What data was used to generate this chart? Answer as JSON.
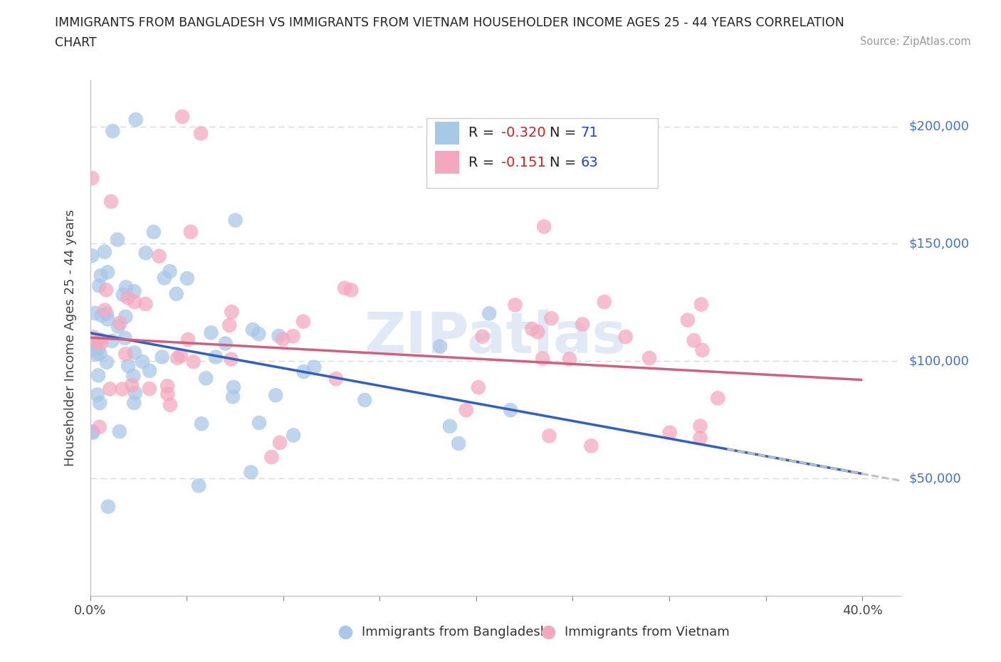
{
  "title_line1": "IMMIGRANTS FROM BANGLADESH VS IMMIGRANTS FROM VIETNAM HOUSEHOLDER INCOME AGES 25 - 44 YEARS CORRELATION",
  "title_line2": "CHART",
  "source": "Source: ZipAtlas.com",
  "ylabel": "Householder Income Ages 25 - 44 years",
  "xlim": [
    0.0,
    0.4
  ],
  "ylim": [
    0,
    220000
  ],
  "bangladesh_color": "#a8c8e8",
  "vietnam_color": "#f4a8c0",
  "bangladesh_line_color": "#3060c0",
  "vietnam_line_color": "#d06080",
  "dash_line_color": "#c0c0c0",
  "bangladesh_R": "-0.320",
  "bangladesh_N": "71",
  "vietnam_R": "-0.151",
  "vietnam_N": "63",
  "watermark": "ZIPatlas",
  "grid_color": "#d8d8d8",
  "bg_color": "#ffffff",
  "right_label_color": "#4472c4",
  "bang_trend_y0": 112000,
  "bang_trend_y1": 52000,
  "viet_trend_y0": 110000,
  "viet_trend_y1": 92000
}
